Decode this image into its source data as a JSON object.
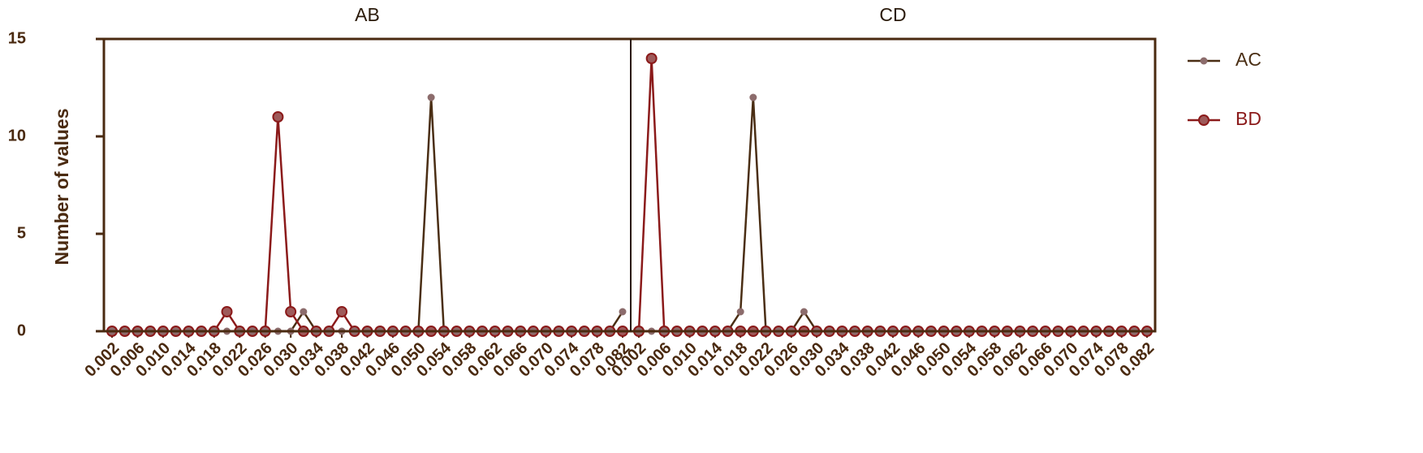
{
  "chart_data": [
    {
      "type": "line",
      "title": "AB",
      "y_label": "Number of values",
      "categories": [
        "0.002",
        null,
        "0.006",
        null,
        "0.010",
        null,
        "0.014",
        null,
        "0.018",
        null,
        "0.022",
        null,
        "0.026",
        null,
        "0.030",
        null,
        "0.034",
        null,
        "0.038",
        null,
        "0.042",
        null,
        "0.046",
        null,
        "0.050",
        null,
        "0.054",
        null,
        "0.058",
        null,
        "0.062",
        null,
        "0.066",
        null,
        "0.070",
        null,
        "0.074",
        null,
        "0.078",
        null,
        "0.082"
      ],
      "ylim": [
        0,
        15
      ],
      "yticks": [
        0,
        5,
        10,
        15
      ],
      "series": [
        {
          "name": "AC",
          "color": "#4a2e14",
          "marker_color": "#8c6c6c",
          "values": [
            0,
            0,
            0,
            0,
            0,
            0,
            0,
            0,
            0,
            0,
            0,
            0,
            0,
            0,
            0,
            1,
            0,
            0,
            0,
            0,
            0,
            0,
            0,
            0,
            0,
            12,
            0,
            0,
            0,
            0,
            0,
            0,
            0,
            0,
            0,
            0,
            0,
            0,
            0,
            0,
            1
          ]
        },
        {
          "name": "BD",
          "color": "#8b1a1a",
          "marker_color": "#9e5a5a",
          "values": [
            0,
            0,
            0,
            0,
            0,
            0,
            0,
            0,
            0,
            1,
            0,
            0,
            0,
            11,
            1,
            0,
            0,
            0,
            1,
            0,
            0,
            0,
            0,
            0,
            0,
            0,
            0,
            0,
            0,
            0,
            0,
            0,
            0,
            0,
            0,
            0,
            0,
            0,
            0,
            0,
            0
          ]
        }
      ]
    },
    {
      "type": "line",
      "title": "CD",
      "categories": [
        "0.002",
        null,
        "0.006",
        null,
        "0.010",
        null,
        "0.014",
        null,
        "0.018",
        null,
        "0.022",
        null,
        "0.026",
        null,
        "0.030",
        null,
        "0.034",
        null,
        "0.038",
        null,
        "0.042",
        null,
        "0.046",
        null,
        "0.050",
        null,
        "0.054",
        null,
        "0.058",
        null,
        "0.062",
        null,
        "0.066",
        null,
        "0.070",
        null,
        "0.074",
        null,
        "0.078",
        null,
        "0.082"
      ],
      "ylim": [
        0,
        15
      ],
      "series": [
        {
          "color": "#4a2e14",
          "marker_color": "#8c6c6c",
          "values": [
            0,
            0,
            0,
            0,
            0,
            0,
            0,
            0,
            1,
            12,
            0,
            0,
            0,
            1,
            0,
            0,
            0,
            0,
            0,
            0,
            0,
            0,
            0,
            0,
            0,
            0,
            0,
            0,
            0,
            0,
            0,
            0,
            0,
            0,
            0,
            0,
            0,
            0,
            0,
            0,
            0
          ]
        },
        {
          "color": "#8b1a1a",
          "marker_color": "#9e5a5a",
          "values": [
            0,
            14,
            0,
            0,
            0,
            0,
            0,
            0,
            0,
            0,
            0,
            0,
            0,
            0,
            0,
            0,
            0,
            0,
            0,
            0,
            0,
            0,
            0,
            0,
            0,
            0,
            0,
            0,
            0,
            0,
            0,
            0,
            0,
            0,
            0,
            0,
            0,
            0,
            0,
            0,
            0
          ]
        }
      ]
    }
  ]
}
